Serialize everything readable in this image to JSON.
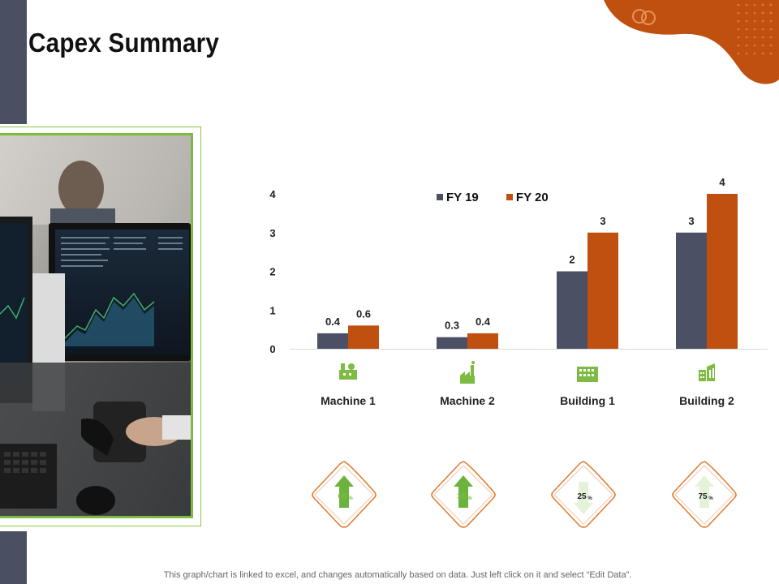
{
  "page": {
    "title": "Capex Summary",
    "footer": "This graph/chart is linked to excel,  and changes automatically based on data. Just left click on it and select “Edit Data”."
  },
  "colors": {
    "fy19": "#4b5065",
    "fy20": "#c0500f",
    "accent_green": "#7dbb42",
    "accent_orange": "#e07a2e",
    "sidebar": "#4a4f62"
  },
  "chart_data": {
    "type": "bar",
    "categories": [
      "Machine 1",
      "Machine 2",
      "Building 1",
      "Building 2"
    ],
    "series": [
      {
        "name": "FY 19",
        "values": [
          0.4,
          0.3,
          2,
          3
        ],
        "labels": [
          "0.4",
          "0.3",
          "2",
          "3"
        ]
      },
      {
        "name": "FY 20",
        "values": [
          0.6,
          0.4,
          3,
          4
        ],
        "labels": [
          "0.6",
          "0.4",
          "3",
          "4"
        ]
      }
    ],
    "yticks": [
      "0",
      "1",
      "2",
      "3",
      "4"
    ],
    "ylim": [
      0,
      4
    ],
    "legend": "top",
    "grid": false
  },
  "category_icons": [
    "factory-icon",
    "plant-icon",
    "building-icon",
    "buildings-icon"
  ],
  "badges": [
    {
      "value": "60",
      "unit": "%",
      "direction": "up",
      "fill": "dark"
    },
    {
      "value": "35",
      "unit": "%",
      "direction": "up",
      "fill": "dark"
    },
    {
      "value": "25",
      "unit": "%",
      "direction": "down",
      "fill": "light"
    },
    {
      "value": "75",
      "unit": "%",
      "direction": "up",
      "fill": "light"
    }
  ]
}
